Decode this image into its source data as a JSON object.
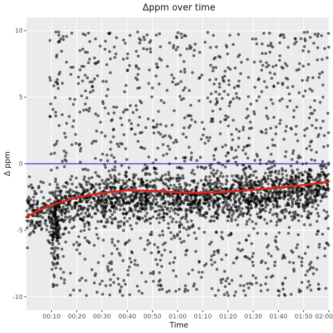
{
  "chart_data": {
    "type": "scatter",
    "title": "Δppm over time",
    "xlabel": "Time",
    "ylabel": "Δ ppm",
    "xlim": [
      0,
      120
    ],
    "ylim": [
      -11,
      11
    ],
    "x_ticks": [
      {
        "value": 10,
        "label": "00:10"
      },
      {
        "value": 20,
        "label": "00:20"
      },
      {
        "value": 30,
        "label": "00:30"
      },
      {
        "value": 40,
        "label": "00:40"
      },
      {
        "value": 50,
        "label": "00:50"
      },
      {
        "value": 60,
        "label": "01:00"
      },
      {
        "value": 70,
        "label": "01:10"
      },
      {
        "value": 80,
        "label": "01:20"
      },
      {
        "value": 90,
        "label": "01:30"
      },
      {
        "value": 100,
        "label": "01:40"
      },
      {
        "value": 110,
        "label": "01:50"
      },
      {
        "value": 120,
        "label": "02:00"
      }
    ],
    "y_ticks": [
      {
        "value": 10,
        "label": "10"
      },
      {
        "value": 5,
        "label": "5"
      },
      {
        "value": 0,
        "label": "0"
      },
      {
        "value": -5,
        "label": "-5"
      },
      {
        "value": -10,
        "label": "-10"
      }
    ],
    "reference_line": {
      "y": 0,
      "color": "#1f1fbf"
    },
    "series": [
      {
        "name": "observations",
        "kind": "points",
        "color": "#000000",
        "opacity": 0.5,
        "count_approx": 12000,
        "note": "points span x 0-120, y -10 to 10; dense band between y -4 and -1 after x≈10"
      },
      {
        "name": "smooth trend",
        "kind": "line",
        "color": "#e0231c",
        "x": [
          0,
          5,
          10,
          15,
          20,
          30,
          40,
          50,
          60,
          70,
          80,
          90,
          100,
          110,
          120
        ],
        "y": [
          -4.0,
          -3.5,
          -3.1,
          -2.8,
          -2.55,
          -2.2,
          -2.0,
          -2.05,
          -2.15,
          -2.2,
          -2.1,
          -1.95,
          -1.8,
          -1.6,
          -1.35
        ]
      }
    ]
  },
  "colors": {
    "panel": "#ebebeb",
    "grid_major": "#ffffff",
    "grid_minor": "#f5f5f5",
    "point": "#000000",
    "smooth": "#e0231c",
    "reference": "#1f1fbf"
  }
}
